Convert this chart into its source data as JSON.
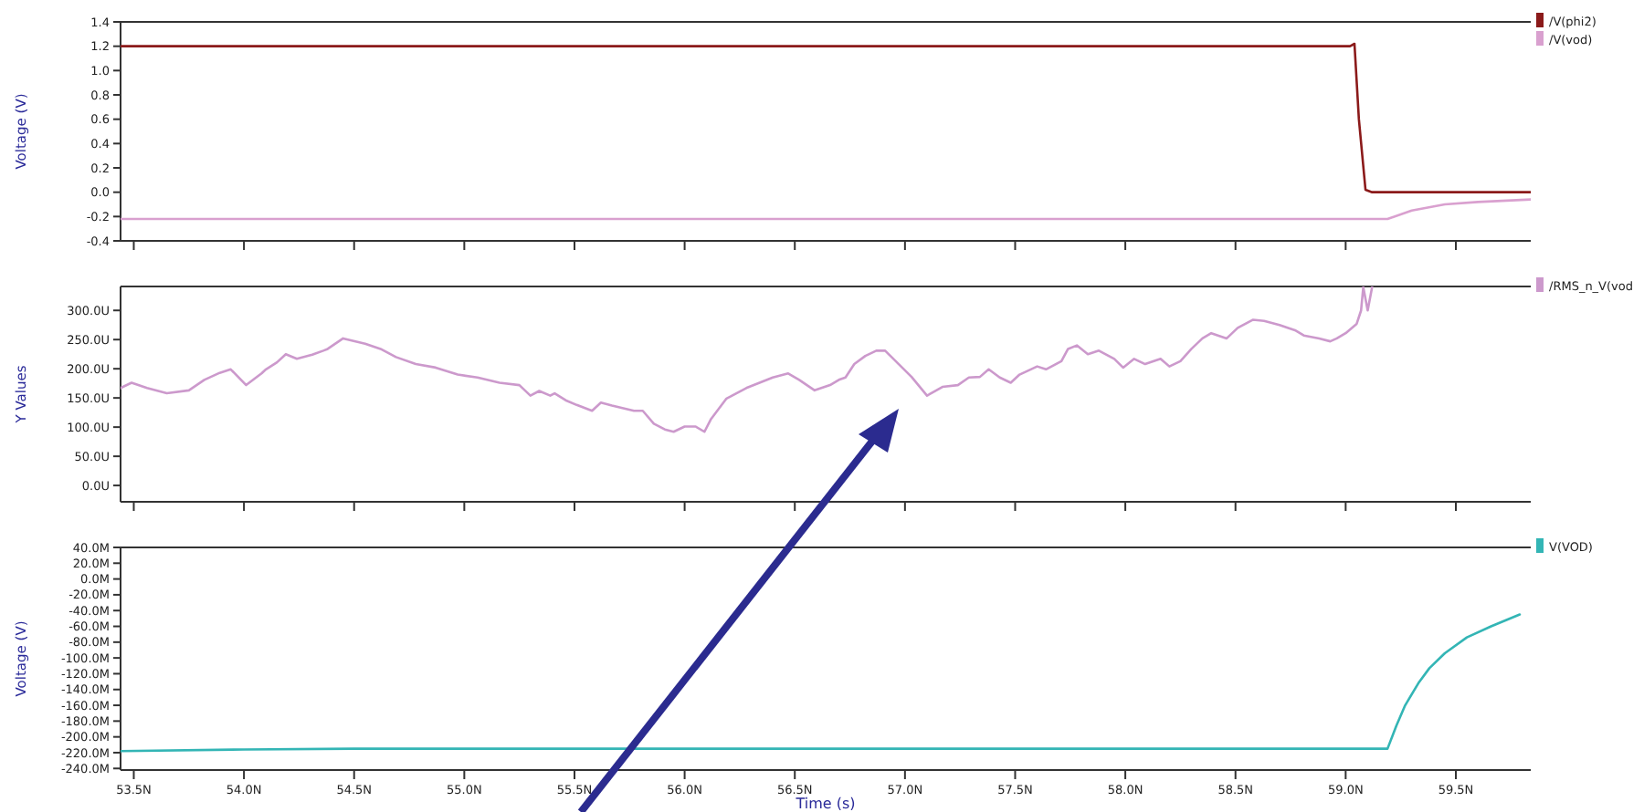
{
  "chart_data": [
    {
      "type": "line",
      "ylabel": "Voltage (V)",
      "xlim": [
        53.44,
        59.84
      ],
      "ylim": [
        -0.4,
        1.4
      ],
      "yticks": [
        {
          "value": 1.4,
          "label": "1.4"
        },
        {
          "value": 1.2,
          "label": "1.2"
        },
        {
          "value": 1,
          "label": "1.0"
        },
        {
          "value": 0.8,
          "label": "0.8"
        },
        {
          "value": 0.6,
          "label": "0.6"
        },
        {
          "value": 0.4,
          "label": "0.4"
        },
        {
          "value": 0.2,
          "label": "0.2"
        },
        {
          "value": 0,
          "label": "0.0"
        },
        {
          "value": -0.2,
          "label": "-0.2"
        },
        {
          "value": -0.4,
          "label": "-0.4"
        }
      ],
      "xticks": [
        {
          "value": 53.5,
          "label": null
        },
        {
          "value": 54,
          "label": null
        },
        {
          "value": 54.5,
          "label": null
        },
        {
          "value": 55,
          "label": null
        },
        {
          "value": 55.5,
          "label": null
        },
        {
          "value": 56,
          "label": null
        },
        {
          "value": 56.5,
          "label": null
        },
        {
          "value": 57,
          "label": null
        },
        {
          "value": 57.5,
          "label": null
        },
        {
          "value": 58,
          "label": null
        },
        {
          "value": 58.5,
          "label": null
        },
        {
          "value": 59,
          "label": null
        },
        {
          "value": 59.5,
          "label": null
        }
      ],
      "tick_labels": "y",
      "legend": "top right",
      "grid": false,
      "series": [
        {
          "name": "/V(phi2)",
          "color": "#8b1a1a",
          "x": [
            53.44,
            59.02,
            59.04,
            59.06,
            59.09,
            59.12,
            59.84
          ],
          "values": [
            1.2,
            1.2,
            1.22,
            0.6,
            0.02,
            0,
            0
          ]
        },
        {
          "name": "/V(vod)",
          "color": "#d9a0cf",
          "x": [
            53.44,
            59.19,
            59.3,
            59.45,
            59.6,
            59.84
          ],
          "values": [
            -0.22,
            -0.22,
            -0.15,
            -0.1,
            -0.08,
            -0.06
          ]
        }
      ]
    },
    {
      "type": "line",
      "ylabel": "Y Values",
      "xlim": [
        53.44,
        59.84
      ],
      "ylim": [
        -28,
        341
      ],
      "yticks": [
        {
          "value": 0,
          "label": "0.0U"
        },
        {
          "value": 50,
          "label": "50.0U"
        },
        {
          "value": 100,
          "label": "100.0U"
        },
        {
          "value": 150,
          "label": "150.0U"
        },
        {
          "value": 200,
          "label": "200.0U"
        },
        {
          "value": 250,
          "label": "250.0U"
        },
        {
          "value": 300,
          "label": "300.0U"
        }
      ],
      "xticks": [
        {
          "value": 53.5,
          "label": null
        },
        {
          "value": 54,
          "label": null
        },
        {
          "value": 54.5,
          "label": null
        },
        {
          "value": 55,
          "label": null
        },
        {
          "value": 55.5,
          "label": null
        },
        {
          "value": 56,
          "label": null
        },
        {
          "value": 56.5,
          "label": null
        },
        {
          "value": 57,
          "label": null
        },
        {
          "value": 57.5,
          "label": null
        },
        {
          "value": 58,
          "label": null
        },
        {
          "value": 58.5,
          "label": null
        },
        {
          "value": 59,
          "label": null
        },
        {
          "value": 59.5,
          "label": null
        }
      ],
      "tick_labels": "y",
      "legend": "top right",
      "grid": false,
      "series": [
        {
          "name": "/RMS_n_V(vod",
          "color": "#cc99cc",
          "x": [
            53.44,
            53.49,
            53.56,
            53.65,
            53.75,
            53.82,
            53.89,
            53.94,
            54.01,
            54.08,
            54.1,
            54.15,
            54.19,
            54.24,
            54.31,
            54.36,
            54.38,
            54.45,
            54.55,
            54.62,
            54.69,
            54.78,
            54.87,
            54.97,
            55.06,
            55.16,
            55.25,
            55.3,
            55.34,
            55.39,
            55.41,
            55.46,
            55.51,
            55.58,
            55.62,
            55.67,
            55.77,
            55.81,
            55.86,
            55.91,
            55.95,
            56,
            56.05,
            56.09,
            56.12,
            56.19,
            56.28,
            56.4,
            56.47,
            56.52,
            56.59,
            56.66,
            56.7,
            56.73,
            56.77,
            56.82,
            56.87,
            56.91,
            57.03,
            57.1,
            57.17,
            57.24,
            57.29,
            57.34,
            57.38,
            57.43,
            57.48,
            57.52,
            57.6,
            57.64,
            57.71,
            57.74,
            57.78,
            57.83,
            57.88,
            57.95,
            57.99,
            58.04,
            58.09,
            58.16,
            58.2,
            58.25,
            58.3,
            58.35,
            58.39,
            58.46,
            58.51,
            58.58,
            58.63,
            58.7,
            58.77,
            58.81,
            58.88,
            58.93,
            58.96,
            59,
            59.05,
            59.07,
            59.08,
            59.1,
            59.12
          ],
          "values": [
            167,
            176,
            167,
            158,
            163,
            181,
            193,
            199,
            172,
            192,
            199,
            211,
            225,
            217,
            224,
            231,
            234,
            252,
            243,
            234,
            220,
            208,
            202,
            190,
            185,
            176,
            172,
            154,
            162,
            154,
            158,
            146,
            138,
            128,
            142,
            137,
            128,
            128,
            106,
            96,
            92,
            101,
            101,
            92,
            114,
            149,
            167,
            185,
            192,
            181,
            163,
            172,
            181,
            185,
            208,
            222,
            231,
            231,
            186,
            154,
            169,
            172,
            185,
            186,
            199,
            185,
            176,
            190,
            204,
            199,
            213,
            234,
            240,
            225,
            231,
            217,
            202,
            217,
            208,
            217,
            204,
            213,
            234,
            252,
            261,
            252,
            270,
            284,
            282,
            275,
            266,
            257,
            252,
            247,
            252,
            261,
            277,
            300,
            340,
            300,
            340
          ]
        }
      ]
    },
    {
      "type": "line",
      "ylabel": "Voltage (V)",
      "xlabel": "Time (s)",
      "xlim": [
        53.44,
        59.84
      ],
      "ylim": [
        -242,
        40
      ],
      "yticks": [
        {
          "value": 40,
          "label": "40.0M"
        },
        {
          "value": 20,
          "label": "20.0M"
        },
        {
          "value": 0,
          "label": "0.0M"
        },
        {
          "value": -20,
          "label": "-20.0M"
        },
        {
          "value": -40,
          "label": "-40.0M"
        },
        {
          "value": -60,
          "label": "-60.0M"
        },
        {
          "value": -80,
          "label": "-80.0M"
        },
        {
          "value": -100,
          "label": "-100.0M"
        },
        {
          "value": -120,
          "label": "-120.0M"
        },
        {
          "value": -140,
          "label": "-140.0M"
        },
        {
          "value": -160,
          "label": "-160.0M"
        },
        {
          "value": -180,
          "label": "-180.0M"
        },
        {
          "value": -200,
          "label": "-200.0M"
        },
        {
          "value": -220,
          "label": "-220.0M"
        },
        {
          "value": -240,
          "label": "-240.0M"
        }
      ],
      "xticks": [
        {
          "value": 53.5,
          "label": "53.5N"
        },
        {
          "value": 54,
          "label": "54.0N"
        },
        {
          "value": 54.5,
          "label": "54.5N"
        },
        {
          "value": 55,
          "label": "55.0N"
        },
        {
          "value": 55.5,
          "label": "55.5N"
        },
        {
          "value": 56,
          "label": "56.0N"
        },
        {
          "value": 56.5,
          "label": "56.5N"
        },
        {
          "value": 57,
          "label": "57.0N"
        },
        {
          "value": 57.5,
          "label": "57.5N"
        },
        {
          "value": 58,
          "label": "58.0N"
        },
        {
          "value": 58.5,
          "label": "58.5N"
        },
        {
          "value": 59,
          "label": "59.0N"
        },
        {
          "value": 59.5,
          "label": "59.5N"
        }
      ],
      "legend": "top right",
      "grid": false,
      "series": [
        {
          "name": "V(VOD)",
          "color": "#33b5b5",
          "x": [
            53.44,
            54,
            54.5,
            59.19,
            59.23,
            59.27,
            59.33,
            59.38,
            59.45,
            59.55,
            59.66,
            59.79
          ],
          "values": [
            -218,
            -216,
            -215,
            -215,
            -186,
            -160,
            -132,
            -113,
            -94,
            -74,
            -60,
            -45
          ]
        }
      ]
    }
  ]
}
